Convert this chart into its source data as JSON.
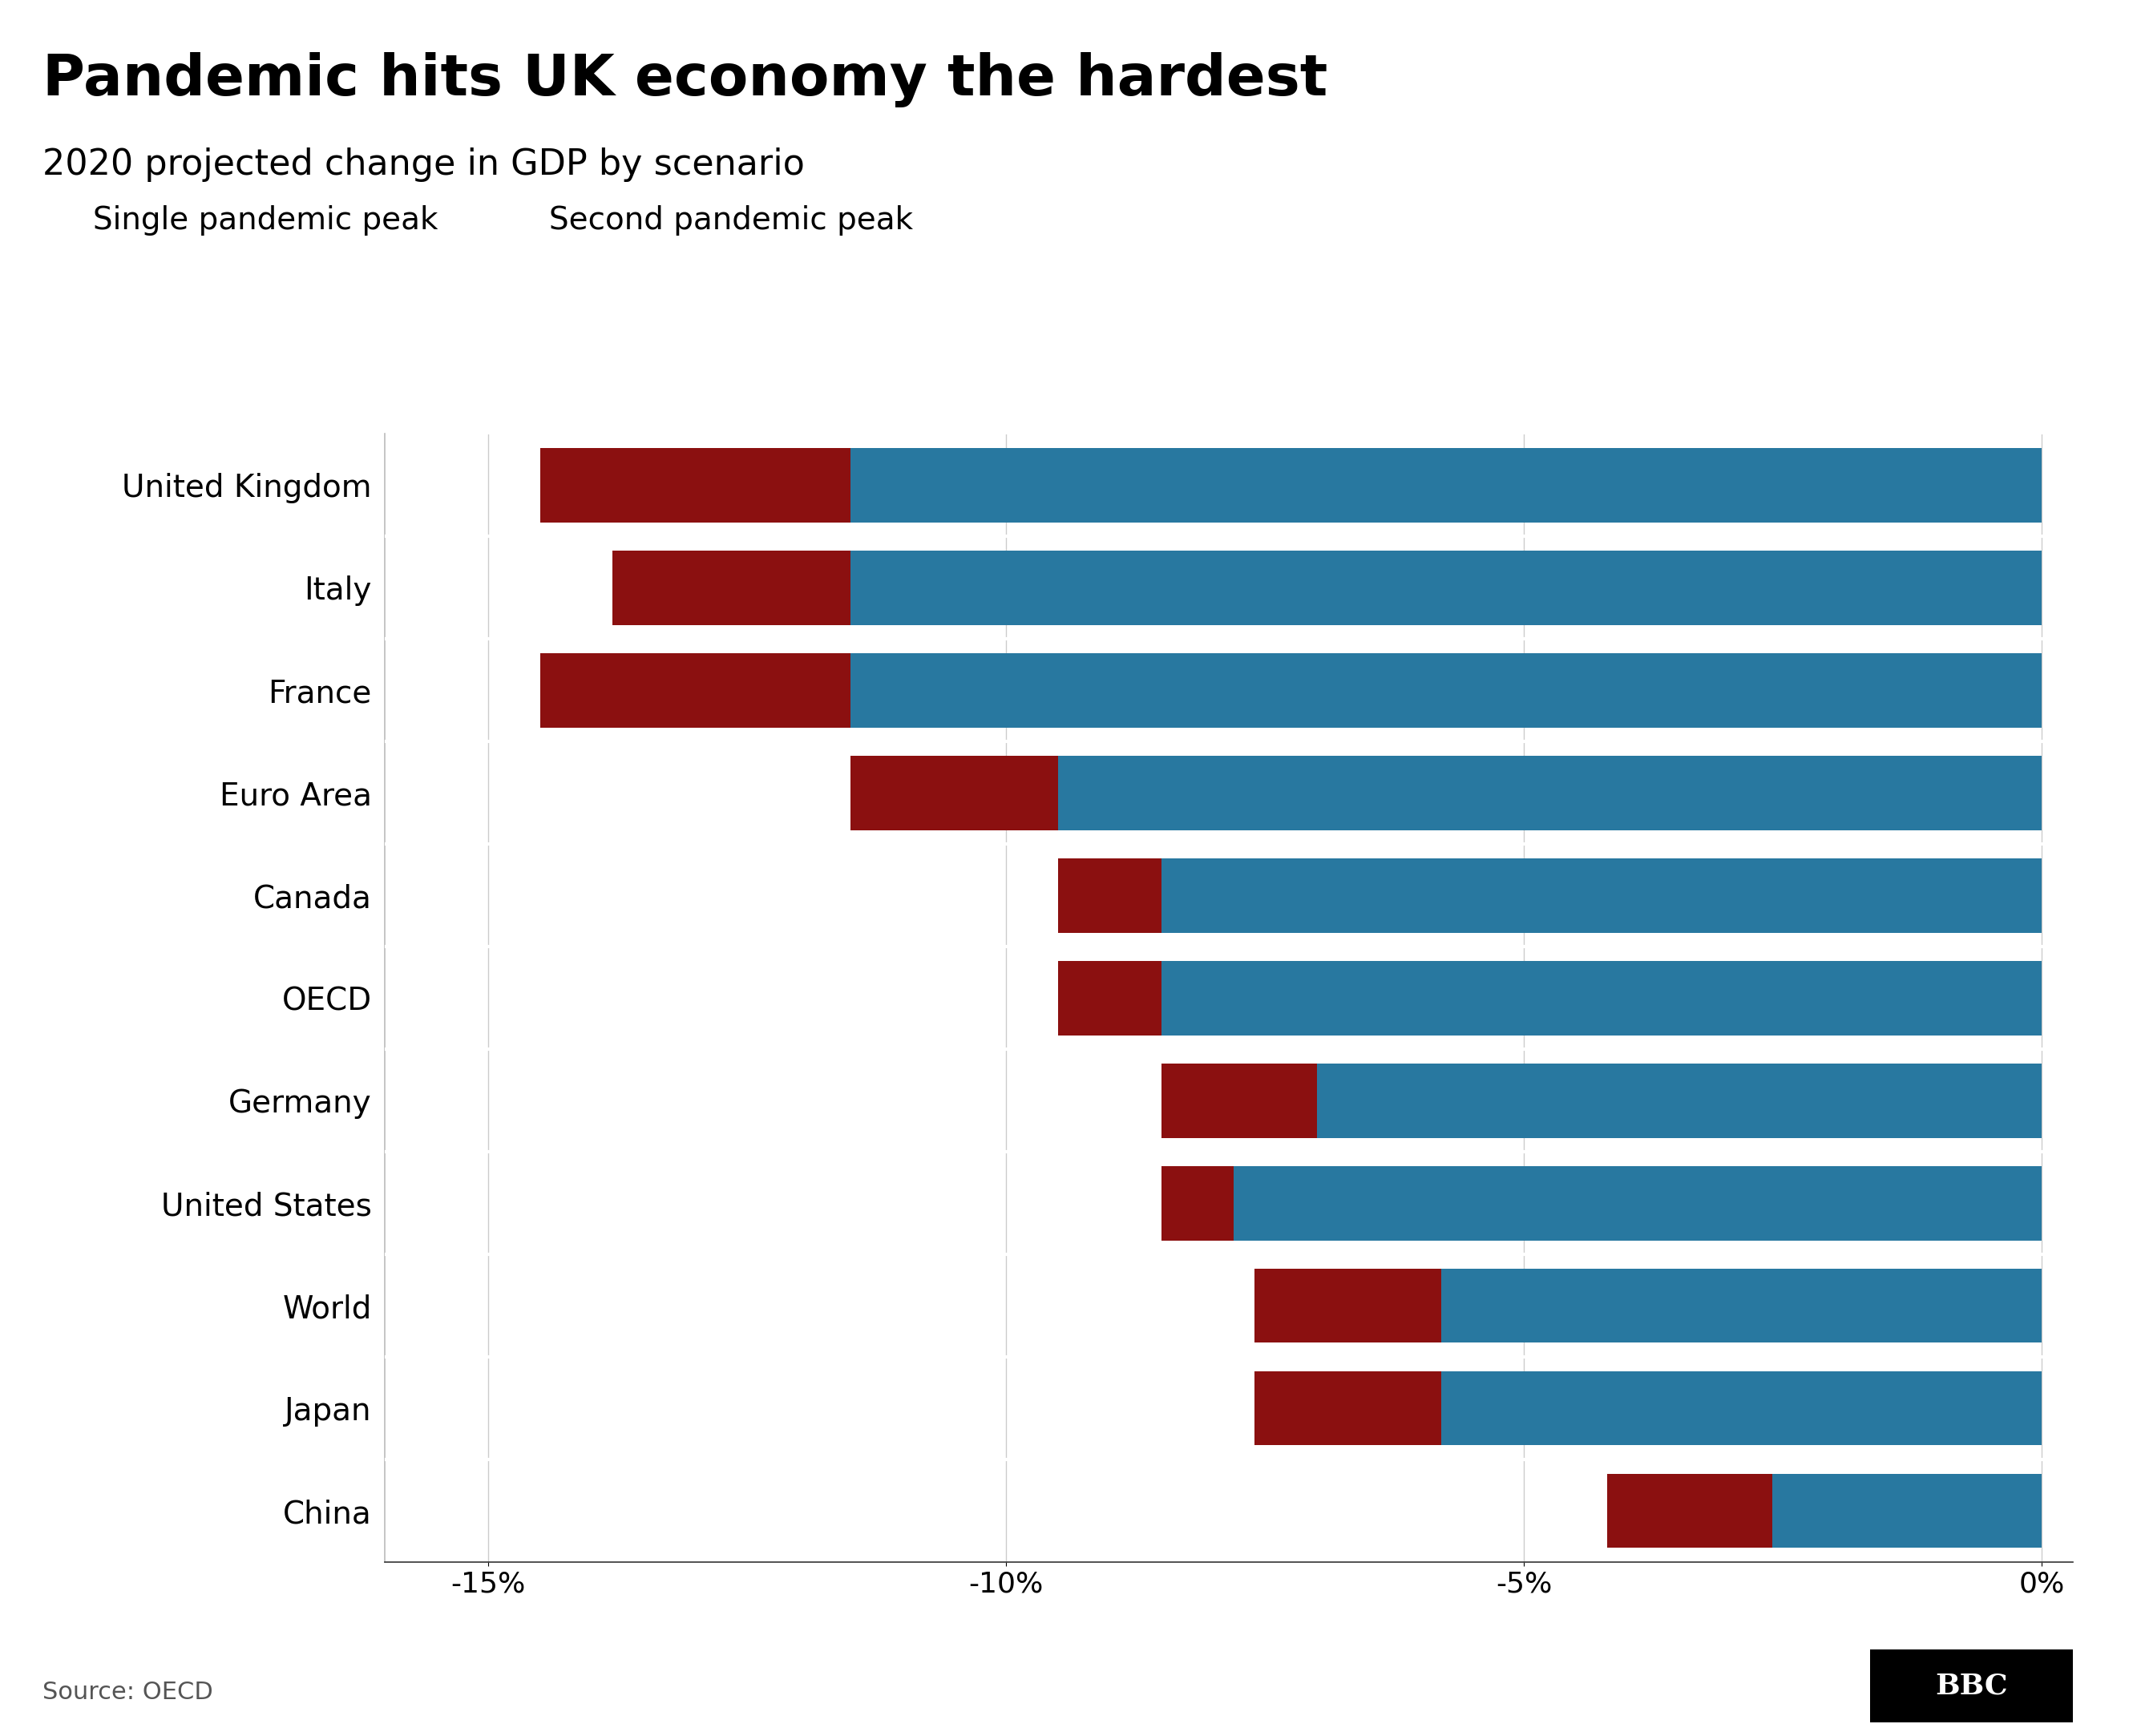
{
  "title": "Pandemic hits UK economy the hardest",
  "subtitle": "2020 projected change in GDP by scenario",
  "categories": [
    "United Kingdom",
    "Italy",
    "France",
    "Euro Area",
    "Canada",
    "OECD",
    "Germany",
    "United States",
    "World",
    "Japan",
    "China"
  ],
  "single_peak": [
    -11.5,
    -11.5,
    -11.5,
    -9.5,
    -8.5,
    -8.5,
    -7.0,
    -7.8,
    -5.8,
    -5.8,
    -2.6
  ],
  "second_peak": [
    -14.5,
    -13.8,
    -14.5,
    -11.5,
    -9.5,
    -9.5,
    -8.5,
    -8.5,
    -7.6,
    -7.6,
    -4.2
  ],
  "single_color": "#2878A0",
  "second_color": "#8B1010",
  "background_color": "#FFFFFF",
  "xlim": [
    -16,
    0.3
  ],
  "xticks": [
    -15,
    -10,
    -5,
    0
  ],
  "xtick_labels": [
    "-15%",
    "-10%",
    "-5%",
    "0%"
  ],
  "legend_single": "Single pandemic peak",
  "legend_second": "Second pandemic peak",
  "source_text": "Source: OECD",
  "bbc_text": "BBC",
  "title_fontsize": 52,
  "subtitle_fontsize": 32,
  "legend_fontsize": 28,
  "tick_fontsize": 26,
  "label_fontsize": 28,
  "bar_height": 0.72,
  "separator_lw": 3.0
}
